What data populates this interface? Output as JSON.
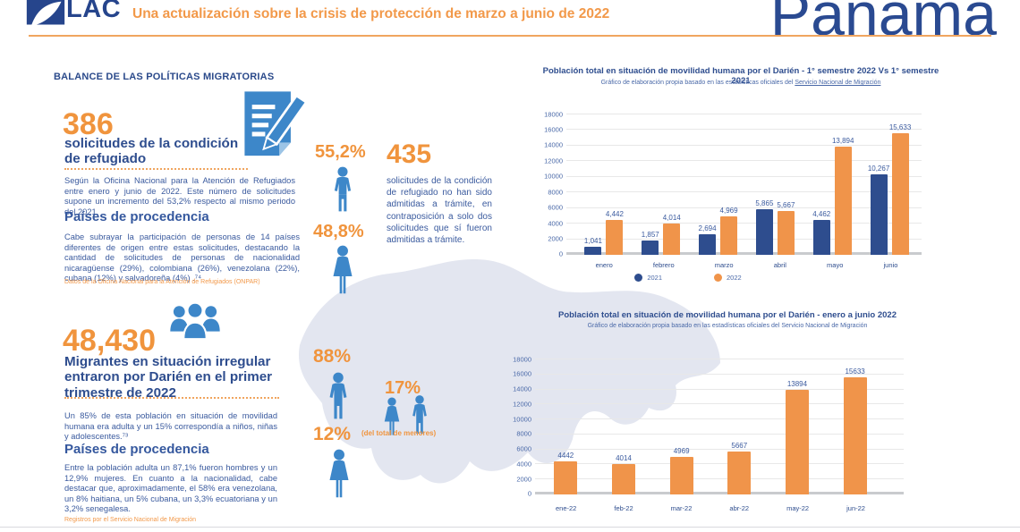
{
  "colors": {
    "accent_orange": "#F0943D",
    "header_orange": "#F2994A",
    "navy": "#26458C",
    "heading_blue": "#2E4D8E",
    "body_blue": "#3A5A9E",
    "icon_blue": "#3D87C9",
    "bar_2021": "#2E4D8E",
    "bar_2022": "#F0944A",
    "map_gray": "#E3E6F0"
  },
  "header": {
    "logo_text": "LAC",
    "subtitle": "Una actualización sobre la crisis de protección de marzo a junio de 2022",
    "country": "Panamá"
  },
  "left": {
    "section_title": "BALANCE DE LAS POLÍTICAS MIGRATORIAS",
    "stat1": {
      "number": "386",
      "label": "solicitudes de la condición de refugiado",
      "body": "Según la Oficina Nacional para la Atención de Refugiados entre enero y junio de 2022. Este número de solicitudes supone un incremento del 53,2% respecto al mismo periodo del 2021.",
      "subheading": "Países de procedencia",
      "body2": "Cabe subrayar la participación de personas de 14 países diferentes de origen entre estas solicitudes, destacando la cantidad de solicitudes de personas de nacionalidad nicaragüense (29%), colombiana (26%), venezolana (22%), cubana (12%) y salvadoreña (4%) .⁷⁴",
      "source": "Datos de la Oficina Nacional para la Atención de Refugiados (ONPAR)"
    },
    "stat2": {
      "number": "48,430",
      "label": "Migrantes en situación irregular entraron por Darién en el primer trimestre de 2022",
      "body": "Un 85% de esta población en situación de movilidad humana era adulta y un 15% correspondía a niños, niñas y adolescentes.⁷³",
      "subheading": "Países de procedencia",
      "body2": "Entre la población adulta un 87,1% fueron hombres y un 12,9% mujeres. En cuanto a la nacionalidad, cabe destacar que, aproximadamente, el 58% era venezolana, un 8% haitiana, un 5% cubana, un 3,3% ecuatoriana y un 3,2% senegalesa.",
      "source": "Registros por el Servicio Nacional de Migración"
    }
  },
  "middle": {
    "male_pct": "55,2%",
    "female_pct": "48,8%",
    "stat": {
      "number": "435",
      "body": "solicitudes de la condición de refugiado no han sido admitidas a trámite, en contraposición a solo dos solicitudes que sí fueron admitidas a trámite."
    },
    "adult_male_pct": "88%",
    "adult_female_pct": "12%",
    "minors_pct": "17%",
    "minors_note": "(del total de menores)"
  },
  "chart_data": [
    {
      "type": "bar",
      "title": "Población total en situación de movilidad humana por el Darién - 1° semestre 2022 Vs  1° semestre 2021",
      "subtitle_prefix": "Gráfico de elaboración propia basado en las estadísticas oficiales del ",
      "subtitle_link": "Servicio Nacional de Migración",
      "categories": [
        "enero",
        "febrero",
        "marzo",
        "abril",
        "mayo",
        "junio"
      ],
      "series": [
        {
          "name": "2021",
          "color": "#2E4D8E",
          "values": [
            1041,
            1857,
            2694,
            5865,
            4462,
            10267
          ],
          "labels": [
            "1,041",
            "1,857",
            "2,694",
            "5,865",
            "4,462",
            "10,267"
          ]
        },
        {
          "name": "2022",
          "color": "#F0944A",
          "values": [
            4442,
            4014,
            4969,
            5667,
            13894,
            15633
          ],
          "labels": [
            "4,442",
            "4,014",
            "4,969",
            "5,667",
            "13,894",
            "15,633"
          ]
        }
      ],
      "ylim": [
        0,
        18000
      ],
      "ytick_step": 2000,
      "grid": true,
      "legend_position": "bottom"
    },
    {
      "type": "bar",
      "title": "Población total en situación de movilidad humana por el Darién - enero a junio 2022",
      "subtitle_prefix": "Gráfico de elaboración propia basado en las estadísticas oficiales del ",
      "subtitle_link": "Servicio Nacional de Migración",
      "categories": [
        "ene-22",
        "feb-22",
        "mar-22",
        "abr-22",
        "may-22",
        "jun-22"
      ],
      "series": [
        {
          "name": "2022",
          "color": "#F0944A",
          "values": [
            4442,
            4014,
            4969,
            5667,
            13894,
            15633
          ],
          "labels": [
            "4442",
            "4014",
            "4969",
            "5667",
            "13894",
            "15633"
          ]
        }
      ],
      "ylim": [
        0,
        18000
      ],
      "ytick_step": 2000,
      "grid": true,
      "legend_position": "none"
    }
  ]
}
